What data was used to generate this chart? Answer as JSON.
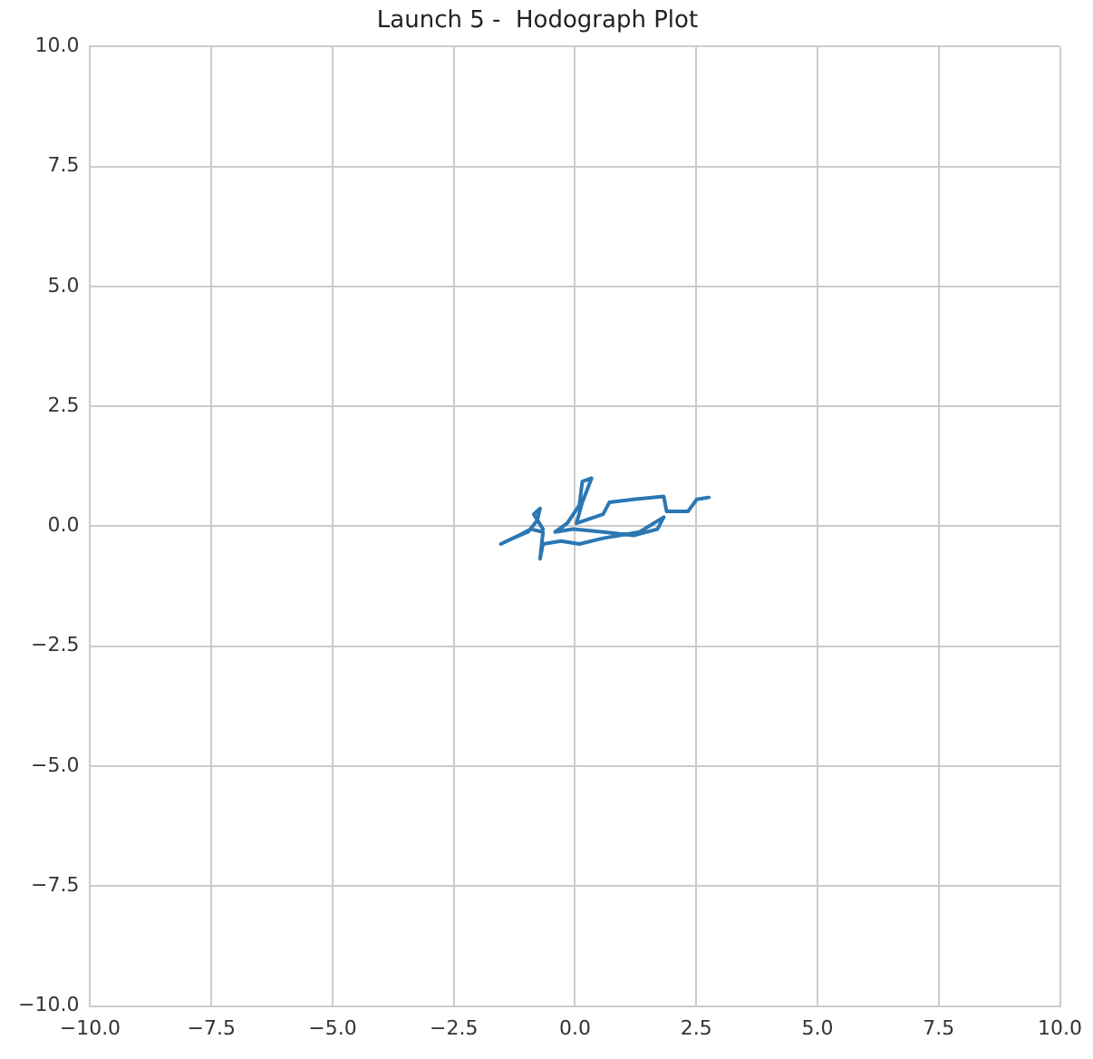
{
  "chart_data": {
    "type": "line",
    "title": "Launch 5 -  Hodograph Plot",
    "grid": true,
    "marker": "none",
    "xlim": [
      -10,
      10
    ],
    "ylim": [
      -10,
      10
    ],
    "xticks": [
      {
        "value": -10,
        "label": "−10.0"
      },
      {
        "value": -7.5,
        "label": "−7.5"
      },
      {
        "value": -5,
        "label": "−5.0"
      },
      {
        "value": -2.5,
        "label": "−2.5"
      },
      {
        "value": 0,
        "label": "0.0"
      },
      {
        "value": 2.5,
        "label": "2.5"
      },
      {
        "value": 5,
        "label": "5.0"
      },
      {
        "value": 7.5,
        "label": "7.5"
      },
      {
        "value": 10,
        "label": "10.0"
      }
    ],
    "yticks": [
      {
        "value": -10,
        "label": "−10.0"
      },
      {
        "value": -7.5,
        "label": "−7.5"
      },
      {
        "value": -5,
        "label": "−5.0"
      },
      {
        "value": -2.5,
        "label": "−2.5"
      },
      {
        "value": 0,
        "label": "0.0"
      },
      {
        "value": 2.5,
        "label": "2.5"
      },
      {
        "value": 5,
        "label": "5.0"
      },
      {
        "value": 7.5,
        "label": "7.5"
      },
      {
        "value": 10,
        "label": "10.0"
      }
    ],
    "x": [
      -0.66,
      -0.85,
      -0.72,
      -0.78,
      -0.97,
      -1.28,
      -1.53,
      -1.16,
      -0.91,
      -0.66,
      -0.72,
      -0.66,
      -0.29,
      0.09,
      0.58,
      1.33,
      1.83,
      1.7,
      1.21,
      0.58,
      -0.04,
      -0.41,
      -0.16,
      0.09,
      0.15,
      0.34,
      0.27,
      0.15,
      0.03,
      0.58,
      0.71,
      1.21,
      1.83,
      1.89,
      2.33,
      2.51,
      2.76
    ],
    "series": [
      {
        "color": "#2a77b4",
        "values": [
          -0.06,
          0.25,
          0.37,
          0.12,
          -0.12,
          -0.25,
          -0.37,
          -0.19,
          -0.06,
          -0.12,
          -0.68,
          -0.37,
          -0.31,
          -0.37,
          -0.25,
          -0.12,
          0.19,
          -0.06,
          -0.19,
          -0.12,
          -0.06,
          -0.12,
          0.06,
          0.44,
          0.93,
          1.0,
          0.81,
          0.5,
          0.06,
          0.25,
          0.5,
          0.56,
          0.62,
          0.31,
          0.31,
          0.56,
          0.6
        ]
      }
    ]
  }
}
